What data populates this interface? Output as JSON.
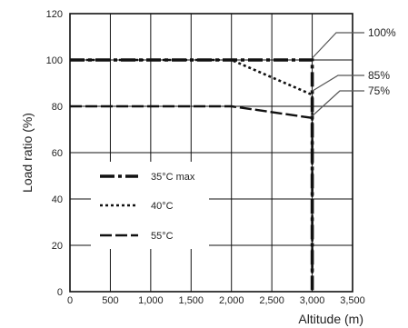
{
  "chart_data": {
    "type": "line",
    "xlabel": "Altitude (m)",
    "ylabel": "Load ratio (%)",
    "xlim": [
      0,
      3500
    ],
    "ylim": [
      0,
      120
    ],
    "x_ticks": [
      0,
      500,
      1000,
      1500,
      2000,
      2500,
      3000,
      3500
    ],
    "x_tick_labels": [
      "0",
      "500",
      "1,000",
      "1,500",
      "2,000",
      "2,500",
      "3,000",
      "3,500"
    ],
    "y_ticks": [
      0,
      20,
      40,
      60,
      80,
      100,
      120
    ],
    "y_tick_labels": [
      "0",
      "20",
      "40",
      "60",
      "80",
      "100",
      "120"
    ],
    "grid": true,
    "legend_position": "lower-left",
    "series": [
      {
        "name": "35°C max",
        "style": "dash-dot",
        "color": "#111111",
        "points": [
          [
            0,
            100
          ],
          [
            3000,
            100
          ],
          [
            3000,
            0
          ]
        ]
      },
      {
        "name": "40°C",
        "style": "dotted",
        "color": "#111111",
        "points": [
          [
            0,
            100
          ],
          [
            2000,
            100
          ],
          [
            3000,
            85
          ],
          [
            3000,
            0
          ]
        ]
      },
      {
        "name": "55°C",
        "style": "dashed",
        "color": "#111111",
        "points": [
          [
            0,
            80
          ],
          [
            2000,
            80
          ],
          [
            3000,
            75
          ],
          [
            3000,
            0
          ]
        ]
      }
    ],
    "annotations": [
      {
        "text": "100%",
        "x": 3000,
        "y": 100
      },
      {
        "text": "85%",
        "x": 3000,
        "y": 85
      },
      {
        "text": "75%",
        "x": 3000,
        "y": 75
      }
    ]
  }
}
